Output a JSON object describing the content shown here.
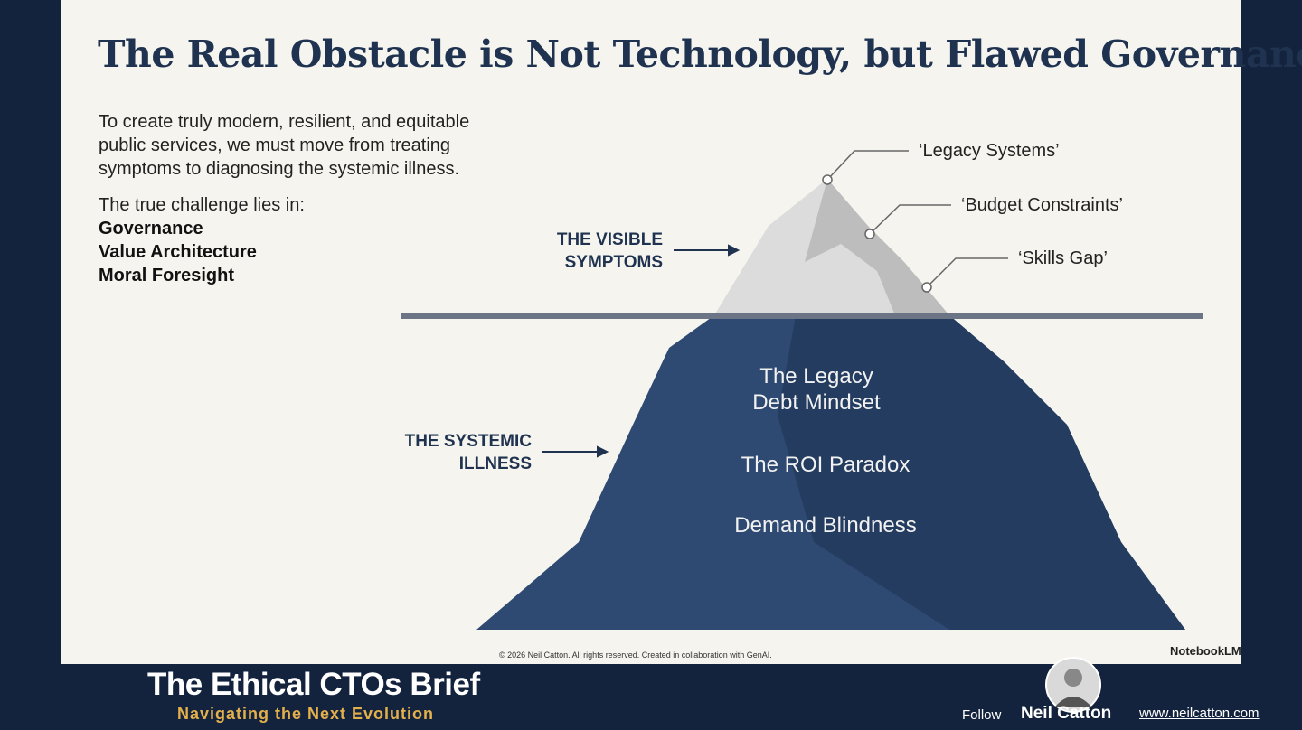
{
  "slide": {
    "title": "The Real Obstacle is Not Technology, but Flawed Governance",
    "intro": "To create truly modern, resilient, and equitable public services, we must move from treating symptoms to diagnosing the systemic illness.",
    "challenge_lead": "The true challenge lies in:",
    "challenges": [
      "Governance",
      "Value Architecture",
      "Moral Foresight"
    ],
    "copyright": "© 2026 Neil Catton. All rights reserved. Created in collaboration with GenAI.",
    "brand": "NotebookLM"
  },
  "iceberg": {
    "visible_label": "THE VISIBLE SYMPTOMS",
    "symptoms": [
      "‘Legacy Systems’",
      "‘Budget Constraints’",
      "‘Skills Gap’"
    ],
    "hidden_label": "THE SYSTEMIC ILLNESS",
    "causes": [
      "The Legacy Debt Mindset",
      "The ROI Paradox",
      "Demand Blindness"
    ]
  },
  "footer": {
    "show_title": "The Ethical CTOs Brief",
    "tagline": "Navigating the Next Evolution",
    "follow": "Follow",
    "name": "Neil Catton",
    "url": "www.neilcatton.com"
  }
}
